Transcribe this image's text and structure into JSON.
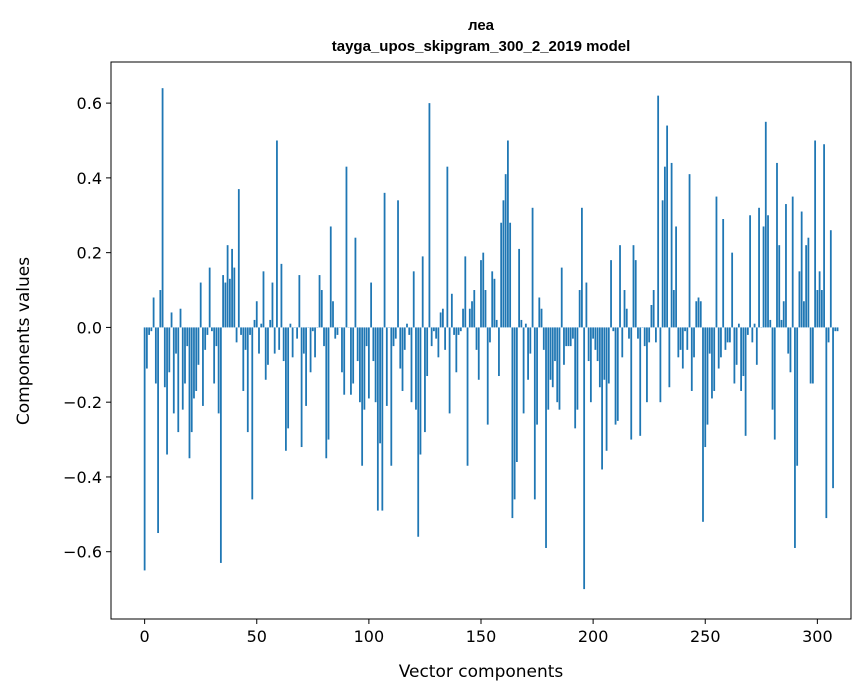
{
  "chart_data": {
    "type": "bar",
    "title": "леа",
    "subtitle": "tayga_upos_skipgram_300_2_2019 model",
    "xlabel": "Vector components",
    "ylabel": "Components values",
    "xlim": [
      -15,
      315
    ],
    "ylim": [
      -0.78,
      0.71
    ],
    "xticks": [
      0,
      50,
      100,
      150,
      200,
      250,
      300
    ],
    "yticks": [
      -0.6,
      -0.4,
      -0.2,
      0.0,
      0.2,
      0.4,
      0.6
    ],
    "xtick_labels": [
      "0",
      "50",
      "100",
      "150",
      "200",
      "250",
      "300"
    ],
    "ytick_labels": [
      "−0.6",
      "−0.4",
      "−0.2",
      "0.0",
      "0.2",
      "0.4",
      "0.6"
    ],
    "bar_color": "#1f77b4",
    "values": [
      -0.65,
      -0.11,
      -0.02,
      -0.01,
      0.08,
      -0.15,
      -0.55,
      0.1,
      0.64,
      -0.16,
      -0.34,
      -0.12,
      0.04,
      -0.23,
      -0.07,
      -0.28,
      0.05,
      -0.22,
      -0.15,
      -0.05,
      -0.35,
      -0.28,
      -0.19,
      -0.17,
      -0.1,
      0.12,
      -0.21,
      -0.06,
      -0.02,
      0.16,
      -0.01,
      -0.15,
      -0.05,
      -0.23,
      -0.63,
      0.14,
      0.12,
      0.22,
      0.13,
      0.21,
      0.16,
      -0.04,
      0.37,
      -0.02,
      -0.17,
      -0.06,
      -0.28,
      -0.02,
      -0.46,
      0.02,
      0.07,
      -0.07,
      0.01,
      0.15,
      -0.14,
      -0.1,
      0.02,
      0.12,
      -0.07,
      0.5,
      -0.06,
      0.17,
      -0.09,
      -0.33,
      -0.27,
      0.01,
      -0.08,
      0.0,
      -0.03,
      0.14,
      -0.32,
      -0.07,
      -0.21,
      0.0,
      -0.12,
      -0.01,
      -0.08,
      0.0,
      0.14,
      0.1,
      -0.05,
      -0.35,
      -0.3,
      0.27,
      0.07,
      -0.03,
      -0.02,
      0.0,
      -0.12,
      -0.18,
      0.43,
      0.0,
      -0.18,
      -0.15,
      0.24,
      -0.09,
      -0.2,
      -0.37,
      -0.22,
      -0.05,
      -0.19,
      0.12,
      -0.09,
      -0.2,
      -0.49,
      -0.31,
      -0.49,
      0.36,
      -0.21,
      0.0,
      -0.37,
      -0.05,
      -0.03,
      0.34,
      -0.11,
      -0.17,
      -0.06,
      0.01,
      -0.02,
      -0.2,
      0.15,
      -0.22,
      -0.56,
      -0.34,
      0.19,
      -0.28,
      -0.13,
      0.6,
      -0.05,
      -0.01,
      -0.03,
      -0.08,
      0.04,
      0.05,
      -0.06,
      0.43,
      -0.23,
      0.09,
      -0.02,
      -0.12,
      -0.02,
      -0.01,
      0.05,
      0.19,
      -0.37,
      0.05,
      0.07,
      0.1,
      -0.06,
      -0.14,
      0.18,
      0.2,
      0.1,
      -0.26,
      -0.04,
      0.15,
      0.13,
      0.02,
      -0.13,
      0.28,
      0.34,
      0.41,
      0.5,
      0.28,
      -0.51,
      -0.46,
      -0.36,
      0.21,
      0.02,
      -0.23,
      0.01,
      -0.14,
      -0.07,
      0.32,
      -0.46,
      -0.26,
      0.08,
      0.05,
      -0.06,
      -0.59,
      -0.22,
      -0.14,
      -0.16,
      -0.09,
      -0.2,
      -0.22,
      0.16,
      -0.1,
      -0.05,
      -0.05,
      -0.05,
      -0.03,
      -0.27,
      -0.22,
      0.1,
      0.32,
      -0.7,
      0.12,
      -0.09,
      -0.2,
      -0.03,
      -0.06,
      -0.09,
      -0.16,
      -0.38,
      -0.14,
      -0.33,
      -0.15,
      0.18,
      -0.01,
      -0.26,
      -0.25,
      0.22,
      -0.08,
      0.1,
      0.05,
      -0.03,
      -0.3,
      0.22,
      0.18,
      -0.03,
      -0.29,
      0.0,
      -0.05,
      -0.2,
      -0.04,
      0.06,
      0.1,
      -0.04,
      0.62,
      -0.2,
      0.34,
      0.43,
      0.54,
      -0.16,
      0.44,
      0.1,
      0.27,
      -0.08,
      -0.06,
      -0.11,
      -0.01,
      -0.06,
      0.41,
      -0.17,
      -0.08,
      0.07,
      0.08,
      0.07,
      -0.52,
      -0.32,
      -0.26,
      -0.07,
      -0.19,
      -0.17,
      0.35,
      -0.11,
      -0.08,
      0.29,
      -0.06,
      -0.04,
      -0.04,
      0.2,
      -0.15,
      -0.1,
      0.01,
      -0.17,
      -0.13,
      -0.29,
      -0.02,
      0.3,
      -0.04,
      0.01,
      -0.1,
      0.32,
      0.0,
      0.27,
      0.55,
      0.3,
      0.02,
      -0.22,
      -0.3,
      0.44,
      0.22,
      0.02,
      0.07,
      0.33,
      -0.07,
      -0.12,
      0.35,
      -0.59,
      -0.37,
      0.15,
      0.31,
      0.07,
      0.22,
      0.24,
      -0.15,
      -0.15,
      0.5,
      0.1,
      0.15,
      0.1,
      0.49,
      -0.51,
      -0.04,
      0.26,
      -0.43,
      -0.01,
      -0.01
    ]
  }
}
